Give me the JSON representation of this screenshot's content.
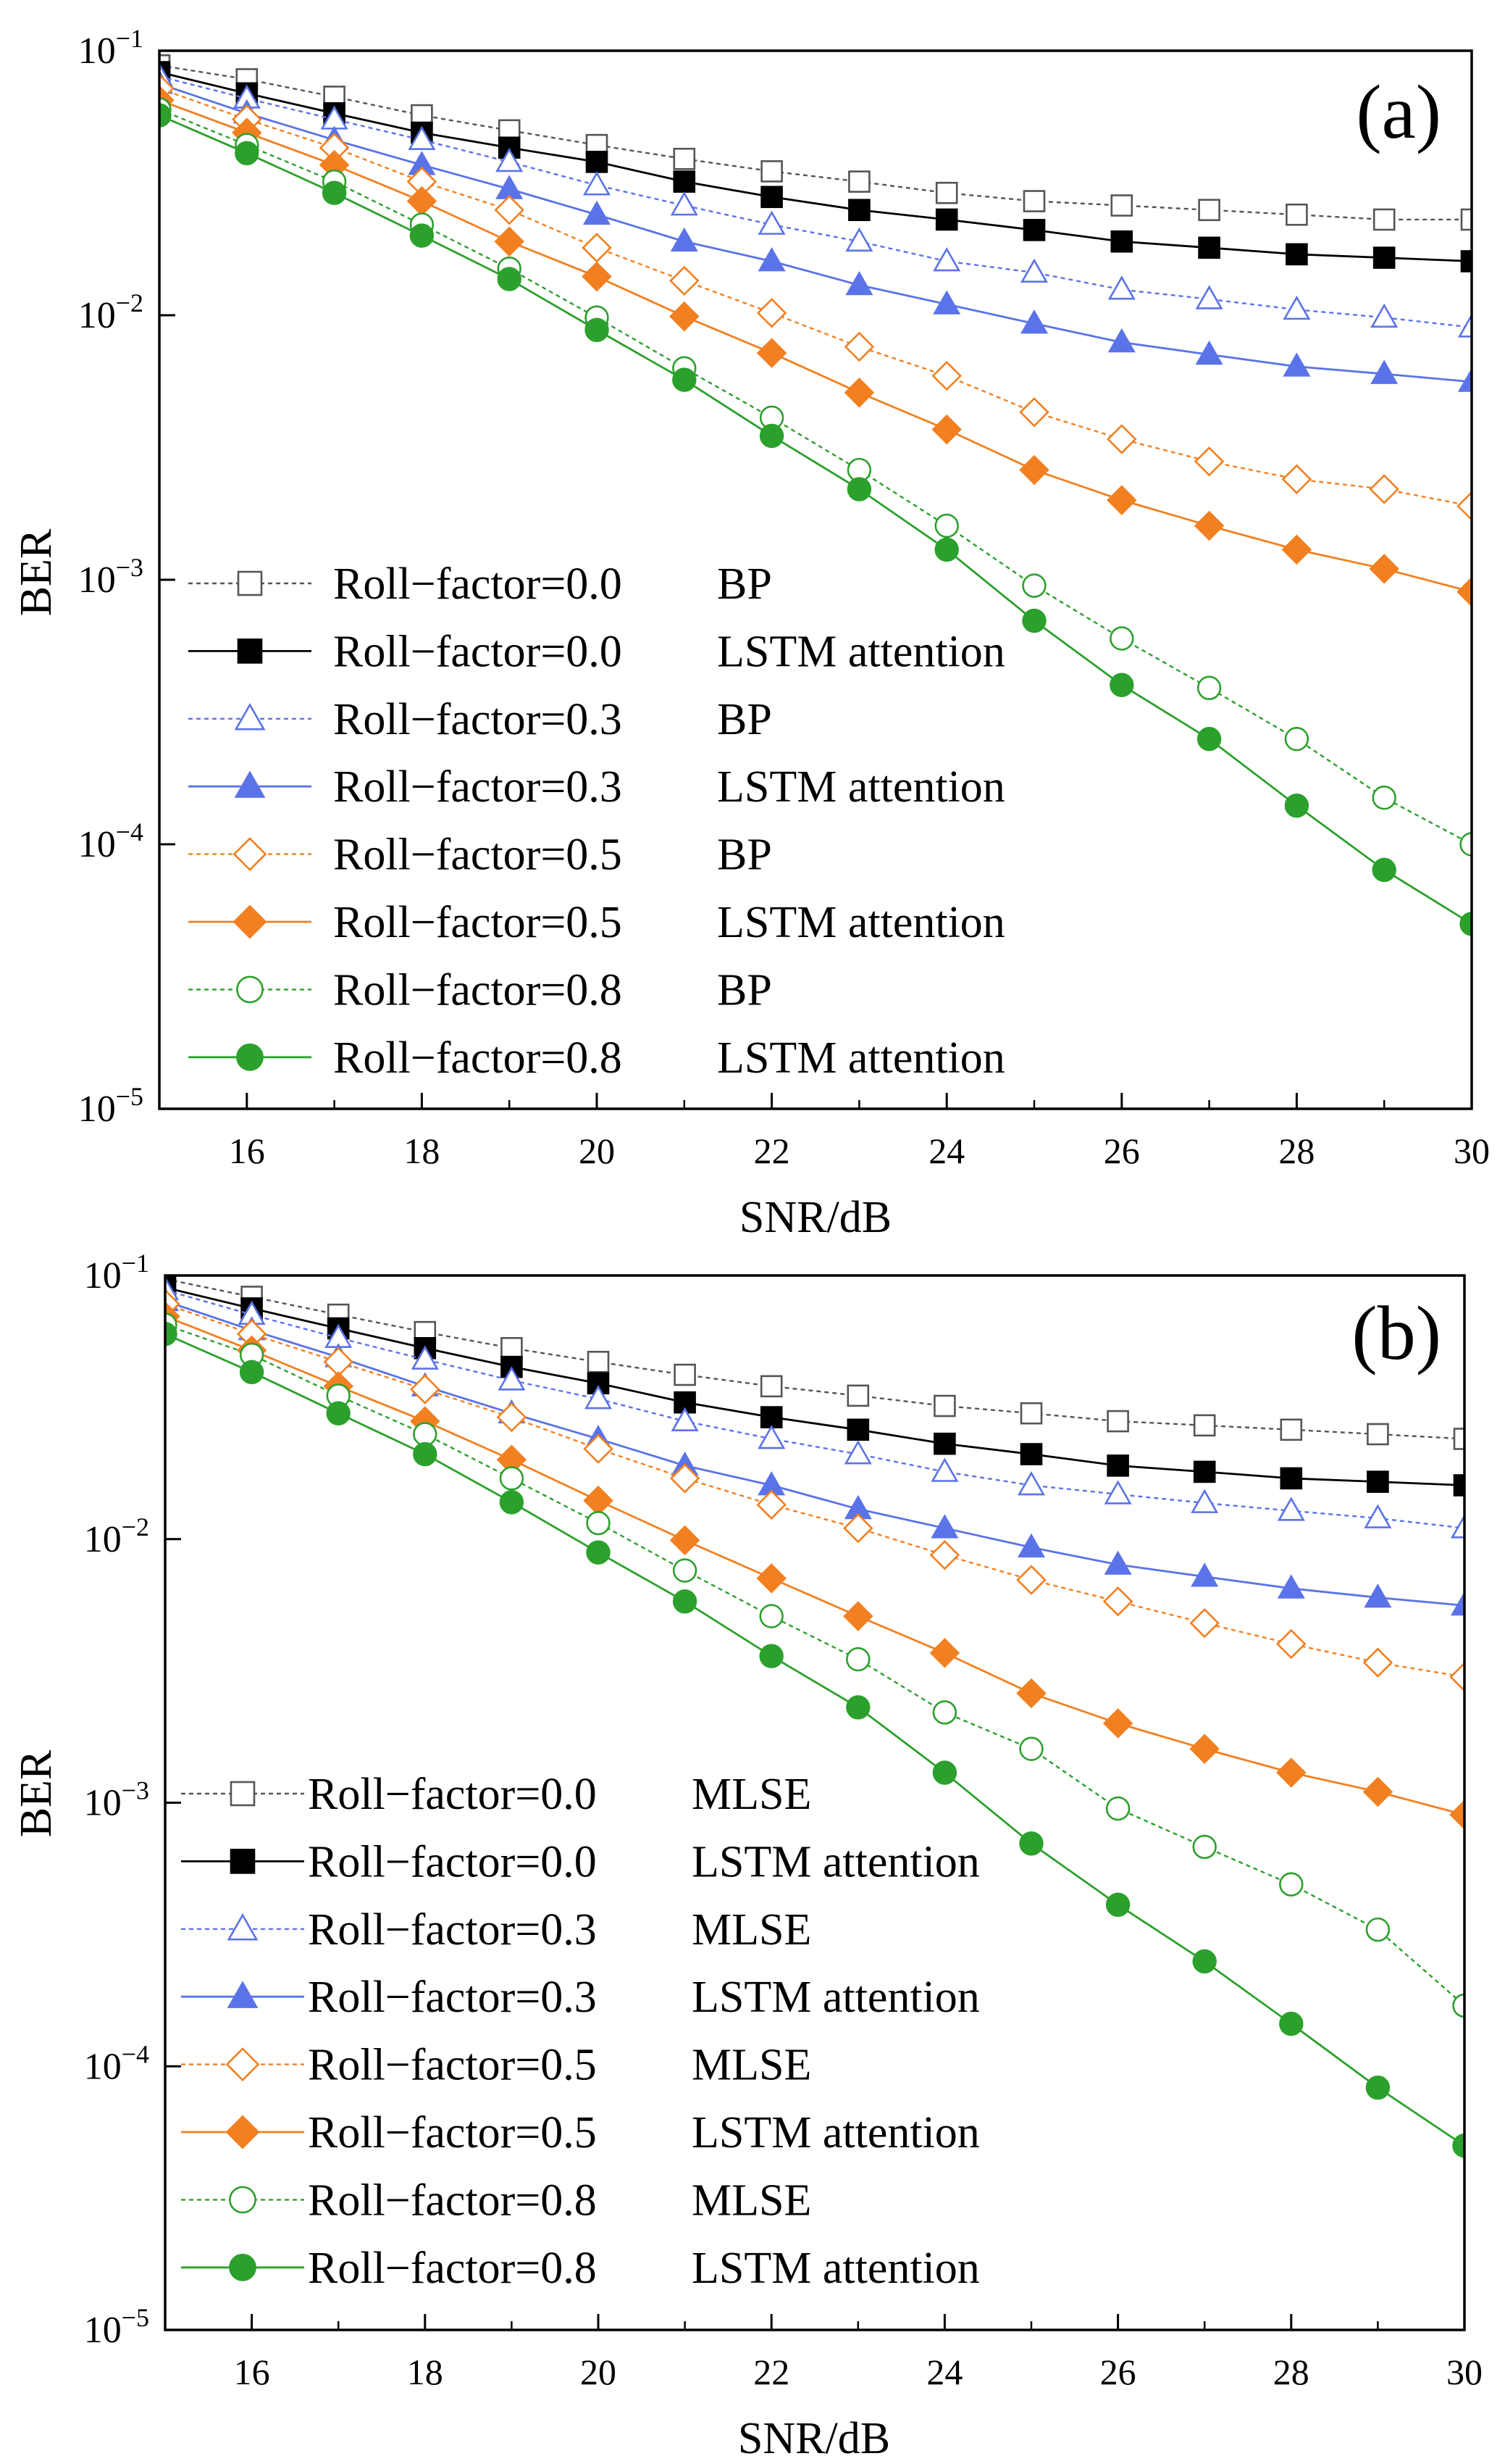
{
  "chart_data": [
    {
      "type": "line",
      "panel_label": "(a)",
      "title": "",
      "xlabel": "SNR/dB",
      "ylabel": "BER",
      "yscale": "log",
      "xlim": [
        15,
        30
      ],
      "ylim": [
        1e-05,
        0.1
      ],
      "grid": false,
      "legend_position": "bottom-left",
      "x_ticks": [
        {
          "value": 16,
          "label": "16"
        },
        {
          "value": 18,
          "label": "18"
        },
        {
          "value": 20,
          "label": "20"
        },
        {
          "value": 22,
          "label": "22"
        },
        {
          "value": 24,
          "label": "24"
        },
        {
          "value": 26,
          "label": "26"
        },
        {
          "value": 28,
          "label": "28"
        },
        {
          "value": 30,
          "label": "30"
        }
      ],
      "y_ticks": [
        {
          "value": 0.1,
          "base": "10",
          "exp": "−1"
        },
        {
          "value": 0.01,
          "base": "10",
          "exp": "−2"
        },
        {
          "value": 0.001,
          "base": "10",
          "exp": "−3"
        },
        {
          "value": 0.0001,
          "base": "10",
          "exp": "−4"
        },
        {
          "value": 1e-05,
          "base": "10",
          "exp": "−5"
        }
      ],
      "x": [
        15,
        16,
        17,
        18,
        19,
        20,
        21,
        22,
        23,
        24,
        25,
        26,
        27,
        28,
        29,
        30
      ],
      "series": [
        {
          "name": "Roll−factor=0.0  BP",
          "color": "#555555",
          "marker": "square",
          "filled": false,
          "dashed": true,
          "values": [
            0.088,
            0.078,
            0.067,
            0.057,
            0.05,
            0.044,
            0.039,
            0.035,
            0.032,
            0.029,
            0.027,
            0.026,
            0.025,
            0.024,
            0.023,
            0.023
          ]
        },
        {
          "name": "Roll−factor=0.0  LSTM attention",
          "color": "#000000",
          "marker": "square",
          "filled": true,
          "dashed": false,
          "values": [
            0.083,
            0.069,
            0.058,
            0.049,
            0.043,
            0.038,
            0.032,
            0.028,
            0.025,
            0.023,
            0.021,
            0.019,
            0.018,
            0.017,
            0.0165,
            0.016
          ]
        },
        {
          "name": "Roll−factor=0.3  BP",
          "color": "#5b73e8",
          "marker": "triangle",
          "filled": false,
          "dashed": true,
          "values": [
            0.08,
            0.066,
            0.055,
            0.046,
            0.038,
            0.031,
            0.026,
            0.022,
            0.019,
            0.016,
            0.0145,
            0.0125,
            0.0115,
            0.0105,
            0.0098,
            0.009
          ]
        },
        {
          "name": "Roll−factor=0.3  LSTM attention",
          "color": "#5b73e8",
          "marker": "triangle",
          "filled": true,
          "dashed": false,
          "values": [
            0.075,
            0.058,
            0.046,
            0.037,
            0.03,
            0.024,
            0.019,
            0.016,
            0.013,
            0.011,
            0.0093,
            0.0079,
            0.0071,
            0.0064,
            0.006,
            0.0056
          ]
        },
        {
          "name": "Roll−factor=0.5  BP",
          "color": "#f28020",
          "marker": "diamond",
          "filled": false,
          "dashed": true,
          "values": [
            0.072,
            0.055,
            0.043,
            0.032,
            0.025,
            0.018,
            0.0135,
            0.0102,
            0.0076,
            0.0059,
            0.0043,
            0.0034,
            0.0028,
            0.0024,
            0.0022,
            0.0019
          ]
        },
        {
          "name": "Roll−factor=0.5  LSTM attention",
          "color": "#f28020",
          "marker": "diamond",
          "filled": true,
          "dashed": false,
          "values": [
            0.065,
            0.049,
            0.037,
            0.027,
            0.019,
            0.014,
            0.0099,
            0.0072,
            0.0051,
            0.0037,
            0.0026,
            0.002,
            0.0016,
            0.0013,
            0.0011,
            0.0009
          ]
        },
        {
          "name": "Roll−factor=0.8  BP",
          "color": "#2ca02c",
          "marker": "circle",
          "filled": false,
          "dashed": true,
          "values": [
            0.06,
            0.044,
            0.032,
            0.022,
            0.015,
            0.0098,
            0.0063,
            0.0041,
            0.0026,
            0.0016,
            0.00095,
            0.0006,
            0.00039,
            0.00025,
            0.00015,
            0.0001
          ]
        },
        {
          "name": "Roll−factor=0.8  LSTM attention",
          "color": "#2ca02c",
          "marker": "circle",
          "filled": true,
          "dashed": false,
          "values": [
            0.057,
            0.041,
            0.029,
            0.02,
            0.0137,
            0.0088,
            0.0057,
            0.0035,
            0.0022,
            0.0013,
            0.0007,
            0.0004,
            0.00025,
            0.00014,
            8e-05,
            5e-05
          ]
        }
      ]
    },
    {
      "type": "line",
      "panel_label": "(b)",
      "title": "",
      "xlabel": "SNR/dB",
      "ylabel": "BER",
      "yscale": "log",
      "xlim": [
        15,
        30
      ],
      "ylim": [
        1e-05,
        0.1
      ],
      "grid": false,
      "legend_position": "bottom-left",
      "x_ticks": [
        {
          "value": 16,
          "label": "16"
        },
        {
          "value": 18,
          "label": "18"
        },
        {
          "value": 20,
          "label": "20"
        },
        {
          "value": 22,
          "label": "22"
        },
        {
          "value": 24,
          "label": "24"
        },
        {
          "value": 26,
          "label": "26"
        },
        {
          "value": 28,
          "label": "28"
        },
        {
          "value": 30,
          "label": "30"
        }
      ],
      "y_ticks": [
        {
          "value": 0.1,
          "base": "10",
          "exp": "−1"
        },
        {
          "value": 0.01,
          "base": "10",
          "exp": "−2"
        },
        {
          "value": 0.001,
          "base": "10",
          "exp": "−3"
        },
        {
          "value": 0.0001,
          "base": "10",
          "exp": "−4"
        },
        {
          "value": 1e-05,
          "base": "10",
          "exp": "−5"
        }
      ],
      "x": [
        15,
        16,
        17,
        18,
        19,
        20,
        21,
        22,
        23,
        24,
        25,
        26,
        27,
        28,
        29,
        30
      ],
      "series": [
        {
          "name": "Roll−factor=0.0  MLSE",
          "color": "#555555",
          "marker": "square",
          "filled": false,
          "dashed": true,
          "values": [
            0.097,
            0.083,
            0.071,
            0.061,
            0.053,
            0.047,
            0.042,
            0.038,
            0.035,
            0.032,
            0.03,
            0.028,
            0.027,
            0.026,
            0.025,
            0.024
          ]
        },
        {
          "name": "Roll−factor=0.0  LSTM attention",
          "color": "#000000",
          "marker": "square",
          "filled": true,
          "dashed": false,
          "values": [
            0.09,
            0.075,
            0.063,
            0.053,
            0.045,
            0.039,
            0.033,
            0.029,
            0.026,
            0.023,
            0.021,
            0.019,
            0.018,
            0.017,
            0.0165,
            0.016
          ]
        },
        {
          "name": "Roll−factor=0.3  MLSE",
          "color": "#5b73e8",
          "marker": "triangle",
          "filled": false,
          "dashed": true,
          "values": [
            0.088,
            0.071,
            0.058,
            0.048,
            0.04,
            0.034,
            0.028,
            0.024,
            0.021,
            0.018,
            0.016,
            0.0148,
            0.0137,
            0.0128,
            0.012,
            0.011
          ]
        },
        {
          "name": "Roll−factor=0.3  LSTM attention",
          "color": "#5b73e8",
          "marker": "triangle",
          "filled": true,
          "dashed": false,
          "values": [
            0.08,
            0.062,
            0.049,
            0.038,
            0.03,
            0.024,
            0.019,
            0.016,
            0.013,
            0.011,
            0.0093,
            0.008,
            0.0072,
            0.0065,
            0.006,
            0.0056
          ]
        },
        {
          "name": "Roll−factor=0.5  MLSE",
          "color": "#f28020",
          "marker": "diamond",
          "filled": false,
          "dashed": true,
          "values": [
            0.078,
            0.06,
            0.047,
            0.037,
            0.029,
            0.022,
            0.017,
            0.0135,
            0.011,
            0.0087,
            0.007,
            0.0058,
            0.0048,
            0.004,
            0.0034,
            0.003
          ]
        },
        {
          "name": "Roll−factor=0.5  LSTM attention",
          "color": "#f28020",
          "marker": "diamond",
          "filled": true,
          "dashed": false,
          "values": [
            0.07,
            0.052,
            0.038,
            0.028,
            0.02,
            0.014,
            0.0099,
            0.0071,
            0.0051,
            0.0037,
            0.0026,
            0.002,
            0.0016,
            0.0013,
            0.0011,
            0.0009
          ]
        },
        {
          "name": "Roll−factor=0.8  MLSE",
          "color": "#2ca02c",
          "marker": "circle",
          "filled": false,
          "dashed": true,
          "values": [
            0.065,
            0.05,
            0.035,
            0.025,
            0.017,
            0.0115,
            0.0076,
            0.0051,
            0.0035,
            0.0022,
            0.0016,
            0.00095,
            0.00068,
            0.00049,
            0.00033,
            0.00017
          ]
        },
        {
          "name": "Roll−factor=0.8  LSTM attention",
          "color": "#2ca02c",
          "marker": "circle",
          "filled": true,
          "dashed": false,
          "values": [
            0.06,
            0.043,
            0.03,
            0.021,
            0.0138,
            0.0089,
            0.0058,
            0.0036,
            0.0023,
            0.0013,
            0.0007,
            0.00041,
            0.00025,
            0.000145,
            8.3e-05,
            5e-05
          ]
        }
      ]
    }
  ]
}
